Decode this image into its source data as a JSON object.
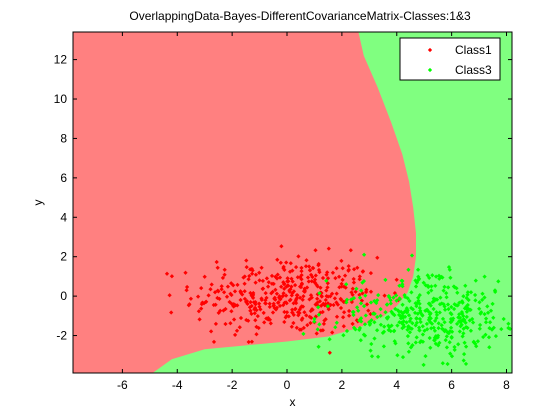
{
  "chart_data": {
    "type": "scatter",
    "title": "OverlappingData-Bayes-DifferentCovarianceMatrix-Classes:1&3",
    "xlabel": "x",
    "ylabel": "y",
    "xlim": [
      -7.8,
      8.2
    ],
    "ylim": [
      -3.9,
      13.4
    ],
    "xticks": [
      "-6",
      "-4",
      "-2",
      "0",
      "2",
      "4",
      "6",
      "8"
    ],
    "xtick_values": [
      -6,
      -4,
      -2,
      0,
      2,
      4,
      6,
      8
    ],
    "yticks": [
      "-2",
      "0",
      "2",
      "4",
      "6",
      "8",
      "10",
      "12"
    ],
    "ytick_values": [
      -2,
      0,
      2,
      4,
      6,
      8,
      10,
      12
    ],
    "grid": false,
    "legend_location": "top-right",
    "background_regions": {
      "class1_region_color": "#ff8080",
      "class3_region_color": "#80ff80",
      "boundary": [
        [
          -4.9,
          -3.9
        ],
        [
          -4.2,
          -3.2
        ],
        [
          -3.0,
          -2.7
        ],
        [
          -1.5,
          -2.5
        ],
        [
          0.0,
          -2.3
        ],
        [
          1.5,
          -2.05
        ],
        [
          2.6,
          -1.6
        ],
        [
          3.5,
          -1.05
        ],
        [
          4.0,
          -0.5
        ],
        [
          4.4,
          0.2
        ],
        [
          4.6,
          1.0
        ],
        [
          4.7,
          2.0
        ],
        [
          4.7,
          3.2
        ],
        [
          4.6,
          4.5
        ],
        [
          4.45,
          5.8
        ],
        [
          4.2,
          7.2
        ],
        [
          3.8,
          8.8
        ],
        [
          3.3,
          10.6
        ],
        [
          2.8,
          12.2
        ],
        [
          2.6,
          13.4
        ]
      ]
    },
    "series": [
      {
        "name": "Class1",
        "color": "#ff0000",
        "marker": "point",
        "n_points": 420,
        "mean": [
          0.0,
          0.0
        ],
        "std": [
          1.7,
          1.0
        ],
        "x_range": [
          -6.8,
          4.5
        ],
        "y_range": [
          -3.2,
          3.1
        ]
      },
      {
        "name": "Class3",
        "color": "#00ff00",
        "marker": "point",
        "n_points": 420,
        "mean": [
          5.0,
          -1.0
        ],
        "std": [
          1.7,
          1.0
        ],
        "x_range": [
          0.2,
          8.2
        ],
        "y_range": [
          -3.8,
          2.5
        ]
      }
    ]
  }
}
